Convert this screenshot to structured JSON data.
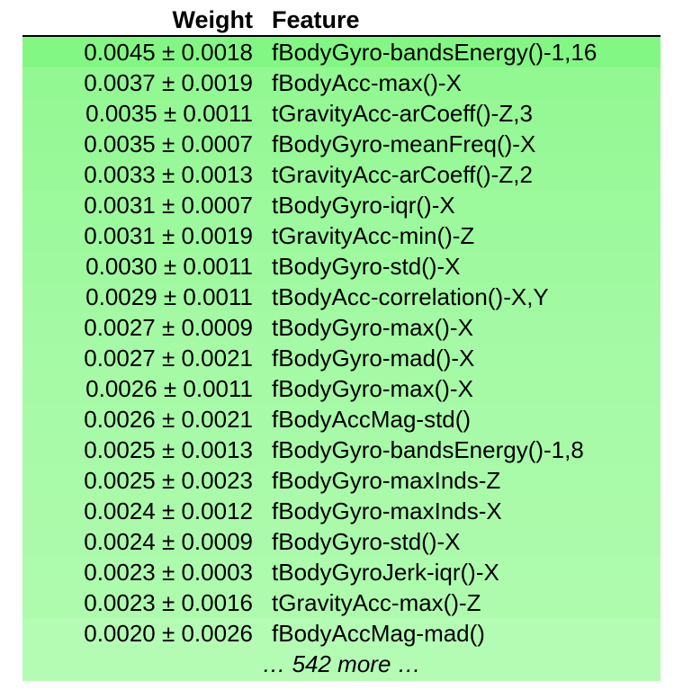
{
  "chart_data": {
    "type": "table",
    "columns": [
      "Weight",
      "Feature"
    ],
    "rows": [
      {
        "weight": "0.0045 ± 0.0018",
        "feature": "fBodyGyro-bandsEnergy()-1,16",
        "weight_value": 0.0045,
        "std": 0.0018,
        "color": "#83f783"
      },
      {
        "weight": "0.0037 ± 0.0019",
        "feature": "fBodyAcc-max()-X",
        "weight_value": 0.0037,
        "std": 0.0019,
        "color": "#92f892"
      },
      {
        "weight": "0.0035 ± 0.0011",
        "feature": "tGravityAcc-arCoeff()-Z,3",
        "weight_value": 0.0035,
        "std": 0.0011,
        "color": "#95f895"
      },
      {
        "weight": "0.0035 ± 0.0007",
        "feature": "fBodyGyro-meanFreq()-X",
        "weight_value": 0.0035,
        "std": 0.0007,
        "color": "#96f896"
      },
      {
        "weight": "0.0033 ± 0.0013",
        "feature": "tGravityAcc-arCoeff()-Z,2",
        "weight_value": 0.0033,
        "std": 0.0013,
        "color": "#99f999"
      },
      {
        "weight": "0.0031 ± 0.0007",
        "feature": "tBodyGyro-iqr()-X",
        "weight_value": 0.0031,
        "std": 0.0007,
        "color": "#9cf99c"
      },
      {
        "weight": "0.0031 ± 0.0019",
        "feature": "tGravityAcc-min()-Z",
        "weight_value": 0.0031,
        "std": 0.0019,
        "color": "#9df99d"
      },
      {
        "weight": "0.0030 ± 0.0011",
        "feature": "tBodyGyro-std()-X",
        "weight_value": 0.003,
        "std": 0.0011,
        "color": "#9ff99f"
      },
      {
        "weight": "0.0029 ± 0.0011",
        "feature": "tBodyAcc-correlation()-X,Y",
        "weight_value": 0.0029,
        "std": 0.0011,
        "color": "#a1f9a1"
      },
      {
        "weight": "0.0027 ± 0.0009",
        "feature": "tBodyGyro-max()-X",
        "weight_value": 0.0027,
        "std": 0.0009,
        "color": "#a4faa4"
      },
      {
        "weight": "0.0027 ± 0.0021",
        "feature": "fBodyGyro-mad()-X",
        "weight_value": 0.0027,
        "std": 0.0021,
        "color": "#a5faa5"
      },
      {
        "weight": "0.0026 ± 0.0011",
        "feature": "fBodyGyro-max()-X",
        "weight_value": 0.0026,
        "std": 0.0011,
        "color": "#a6faa6"
      },
      {
        "weight": "0.0026 ± 0.0021",
        "feature": "fBodyAccMag-std()",
        "weight_value": 0.0026,
        "std": 0.0021,
        "color": "#a7faa7"
      },
      {
        "weight": "0.0025 ± 0.0013",
        "feature": "fBodyGyro-bandsEnergy()-1,8",
        "weight_value": 0.0025,
        "std": 0.0013,
        "color": "#a8faa8"
      },
      {
        "weight": "0.0025 ± 0.0023",
        "feature": "fBodyGyro-maxInds-Z",
        "weight_value": 0.0025,
        "std": 0.0023,
        "color": "#a9faa9"
      },
      {
        "weight": "0.0024 ± 0.0012",
        "feature": "fBodyGyro-maxInds-X",
        "weight_value": 0.0024,
        "std": 0.0012,
        "color": "#aafaaa"
      },
      {
        "weight": "0.0024 ± 0.0009",
        "feature": "fBodyGyro-std()-X",
        "weight_value": 0.0024,
        "std": 0.0009,
        "color": "#abfaab"
      },
      {
        "weight": "0.0023 ± 0.0003",
        "feature": "tBodyGyroJerk-iqr()-X",
        "weight_value": 0.0023,
        "std": 0.0003,
        "color": "#adfbad"
      },
      {
        "weight": "0.0023 ± 0.0016",
        "feature": "tGravityAcc-max()-Z",
        "weight_value": 0.0023,
        "std": 0.0016,
        "color": "#aefbae"
      },
      {
        "weight": "0.0020 ± 0.0026",
        "feature": "fBodyAccMag-mad()",
        "weight_value": 0.002,
        "std": 0.0026,
        "color": "#b4fbb4"
      }
    ],
    "more": {
      "text": "… 542 more …",
      "color": "#b4fbb4"
    }
  }
}
